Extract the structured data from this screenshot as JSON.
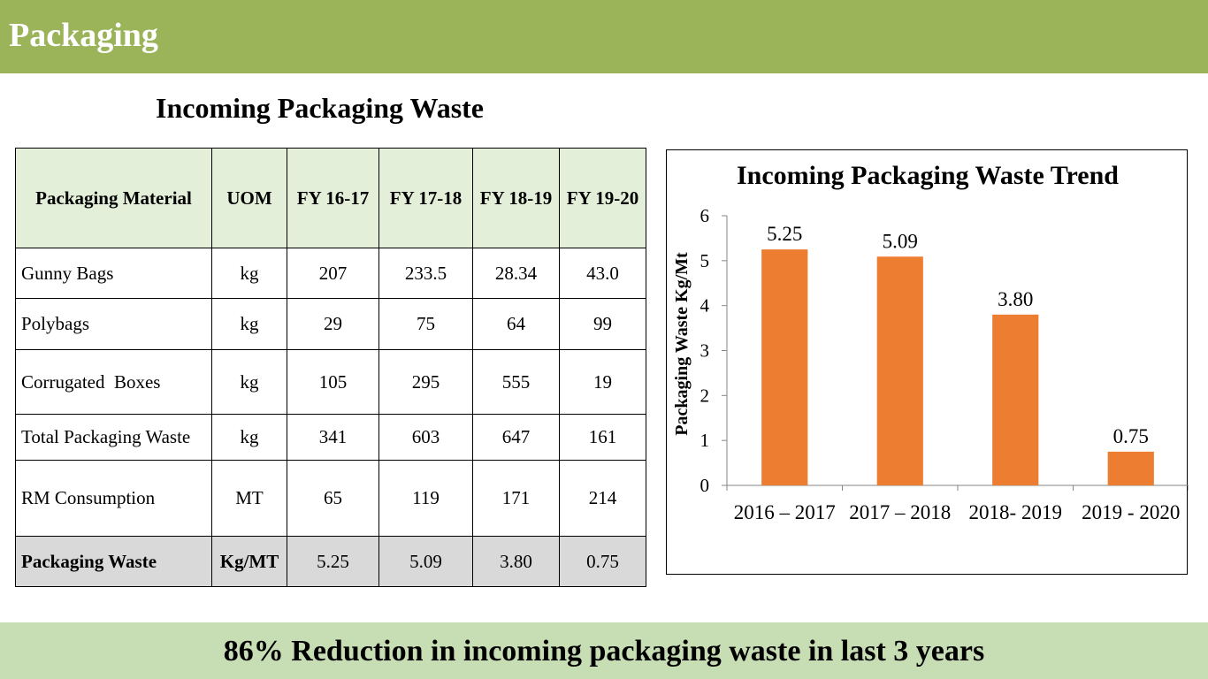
{
  "header": {
    "title": "Packaging"
  },
  "table_title": "Incoming Packaging Waste",
  "table": {
    "columns": [
      "Packaging Material",
      "UOM",
      "FY 16-17",
      "FY 17-18",
      "FY 18-19",
      "FY 19-20"
    ],
    "rows": [
      [
        "Gunny Bags",
        "kg",
        "207",
        "233.5",
        "28.34",
        "43.0"
      ],
      [
        "Polybags",
        "kg",
        "29",
        "75",
        "64",
        "99"
      ],
      [
        "Corrugated  Boxes",
        "kg",
        "105",
        "295",
        "555",
        "19"
      ],
      [
        "Total Packaging Waste",
        "kg",
        "341",
        "603",
        "647",
        "161"
      ],
      [
        "RM Consumption",
        "MT",
        "65",
        "119",
        "171",
        "214"
      ]
    ],
    "total_row": [
      "Packaging Waste",
      "Kg/MT",
      "5.25",
      "5.09",
      "3.80",
      "0.75"
    ]
  },
  "chart_data": {
    "type": "bar",
    "title": "Incoming Packaging Waste Trend",
    "xlabel": "",
    "ylabel": "Packaging Waste Kg/Mt",
    "categories": [
      "2016 – 2017",
      "2017 – 2018",
      "2018- 2019",
      "2019 - 2020"
    ],
    "values": [
      5.25,
      5.09,
      3.8,
      0.75
    ],
    "data_labels": [
      "5.25",
      "5.09",
      "3.80",
      "0.75"
    ],
    "ylim": [
      0,
      6
    ],
    "yticks": [
      0,
      1,
      2,
      3,
      4,
      5,
      6
    ],
    "bar_color": "#ed7d31",
    "grid": false,
    "legend": "none"
  },
  "footer": {
    "text": "86% Reduction in incoming packaging waste in last 3 years"
  },
  "colors": {
    "header_bg": "#9bb45a",
    "footer_bg": "#c7ddb4",
    "table_header_bg": "#e4efd9",
    "table_total_bg": "#d9d9d9"
  }
}
